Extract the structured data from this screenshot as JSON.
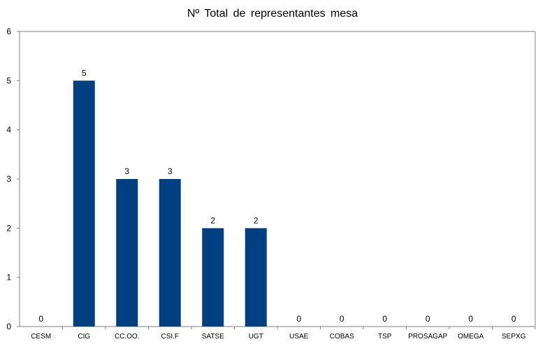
{
  "chart_data": {
    "type": "bar",
    "title": "Nº Total  de representantes  mesa",
    "categories": [
      "CESM",
      "CIG",
      "CC.OO.",
      "CSI.F",
      "SATSE",
      "UGT",
      "USAE",
      "COBAS",
      "TSP",
      "PROSAGAP",
      "OMEGA",
      "SEPXG"
    ],
    "values": [
      0,
      5,
      3,
      3,
      2,
      2,
      0,
      0,
      0,
      0,
      0,
      0
    ],
    "yticks": [
      "0",
      "1",
      "2",
      "3",
      "4",
      "5",
      "6"
    ],
    "ylim": [
      0,
      6
    ],
    "grid": false,
    "legend": "none",
    "bar_color": "#004080",
    "axis_color": "#808080"
  }
}
